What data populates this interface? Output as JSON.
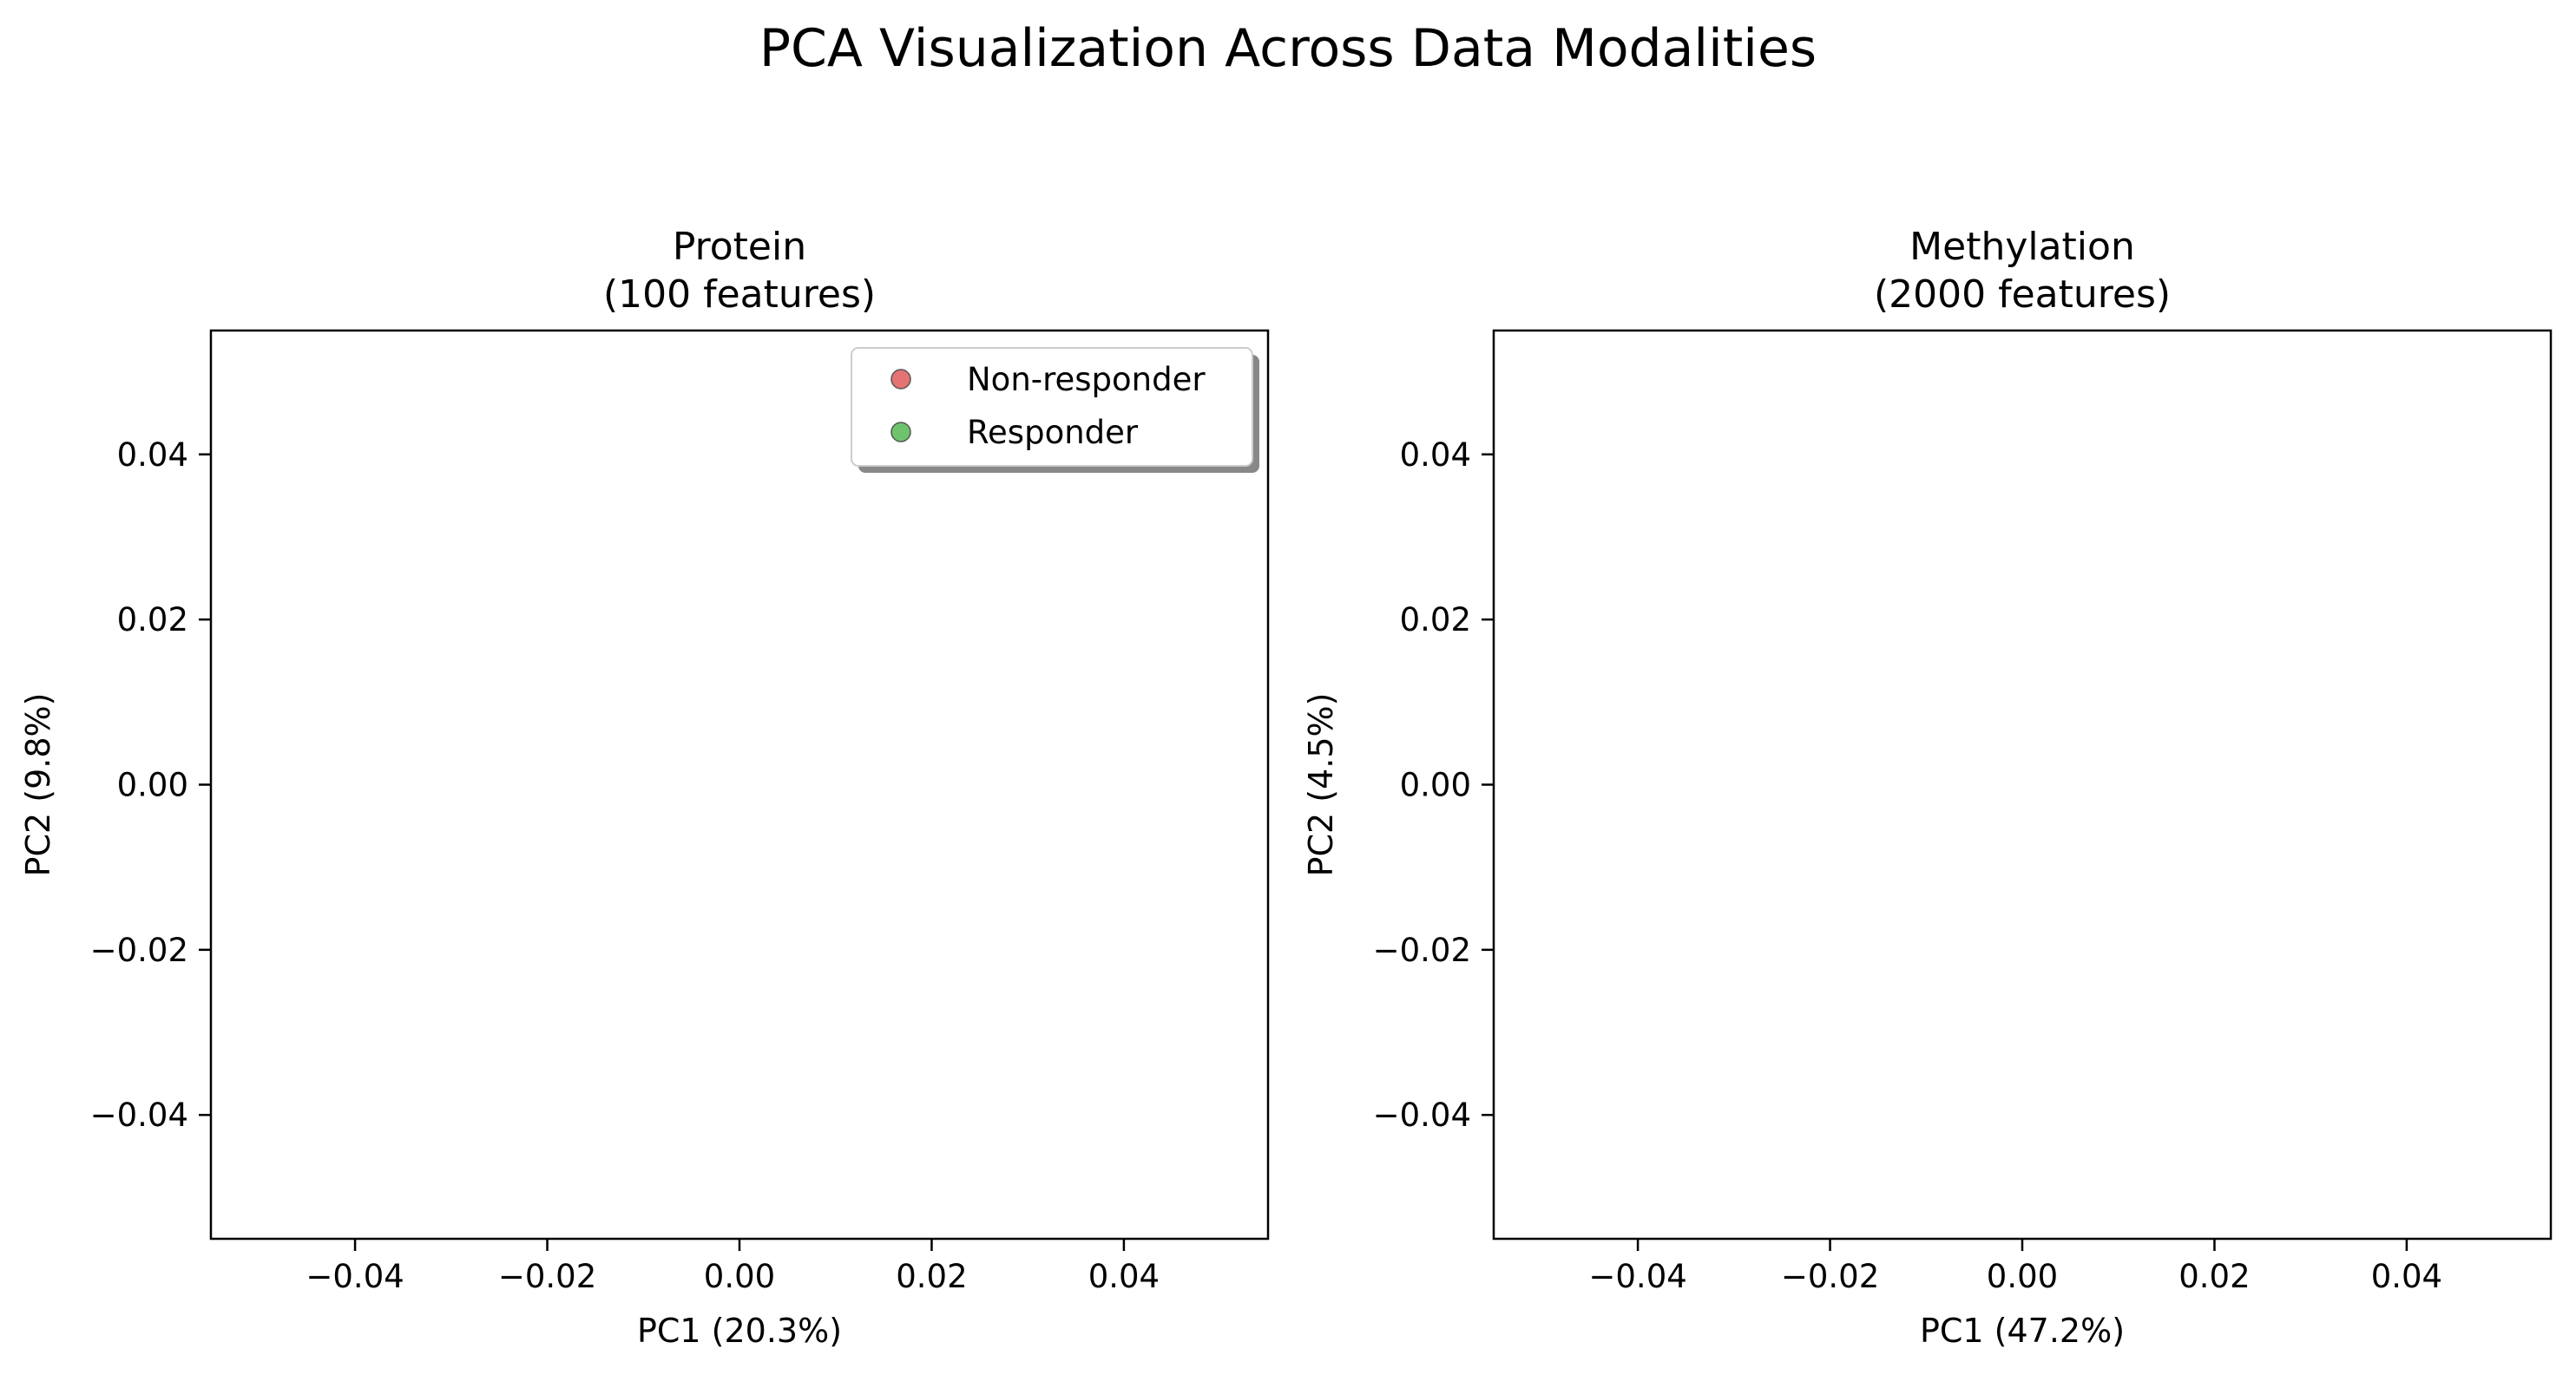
{
  "figure": {
    "title": "PCA Visualization Across Data Modalities"
  },
  "chart_data": [
    {
      "type": "scatter",
      "title": "Protein\n(100 features)",
      "xlabel": "PC1 (20.3%)",
      "ylabel": "PC2 (9.8%)",
      "xlim": [
        -0.055,
        0.055
      ],
      "ylim": [
        -0.055,
        0.055
      ],
      "xticks": [
        -0.04,
        -0.02,
        0.0,
        0.02,
        0.04
      ],
      "yticks": [
        -0.04,
        -0.02,
        0.0,
        0.02,
        0.04
      ],
      "xtick_labels": [
        "−0.04",
        "−0.02",
        "0.00",
        "0.02",
        "0.04"
      ],
      "ytick_labels": [
        "−0.04",
        "−0.02",
        "0.00",
        "0.02",
        "0.04"
      ],
      "grid": false,
      "legend": {
        "placement": "upper right",
        "entries": [
          {
            "label": "Non-responder",
            "color": "#e57373"
          },
          {
            "label": "Responder",
            "color": "#6dc46d"
          }
        ]
      },
      "series": [
        {
          "name": "Non-responder",
          "color": "#e57373",
          "points": []
        },
        {
          "name": "Responder",
          "color": "#6dc46d",
          "points": []
        }
      ]
    },
    {
      "type": "scatter",
      "title": "Methylation\n(2000 features)",
      "xlabel": "PC1 (47.2%)",
      "ylabel": "PC2 (4.5%)",
      "xlim": [
        -0.055,
        0.055
      ],
      "ylim": [
        -0.055,
        0.055
      ],
      "xticks": [
        -0.04,
        -0.02,
        0.0,
        0.02,
        0.04
      ],
      "yticks": [
        -0.04,
        -0.02,
        0.0,
        0.02,
        0.04
      ],
      "xtick_labels": [
        "−0.04",
        "−0.02",
        "0.00",
        "0.02",
        "0.04"
      ],
      "ytick_labels": [
        "−0.04",
        "−0.02",
        "0.00",
        "0.02",
        "0.04"
      ],
      "grid": false,
      "series": [
        {
          "name": "Non-responder",
          "color": "#e57373",
          "points": []
        },
        {
          "name": "Responder",
          "color": "#6dc46d",
          "points": []
        }
      ]
    }
  ]
}
